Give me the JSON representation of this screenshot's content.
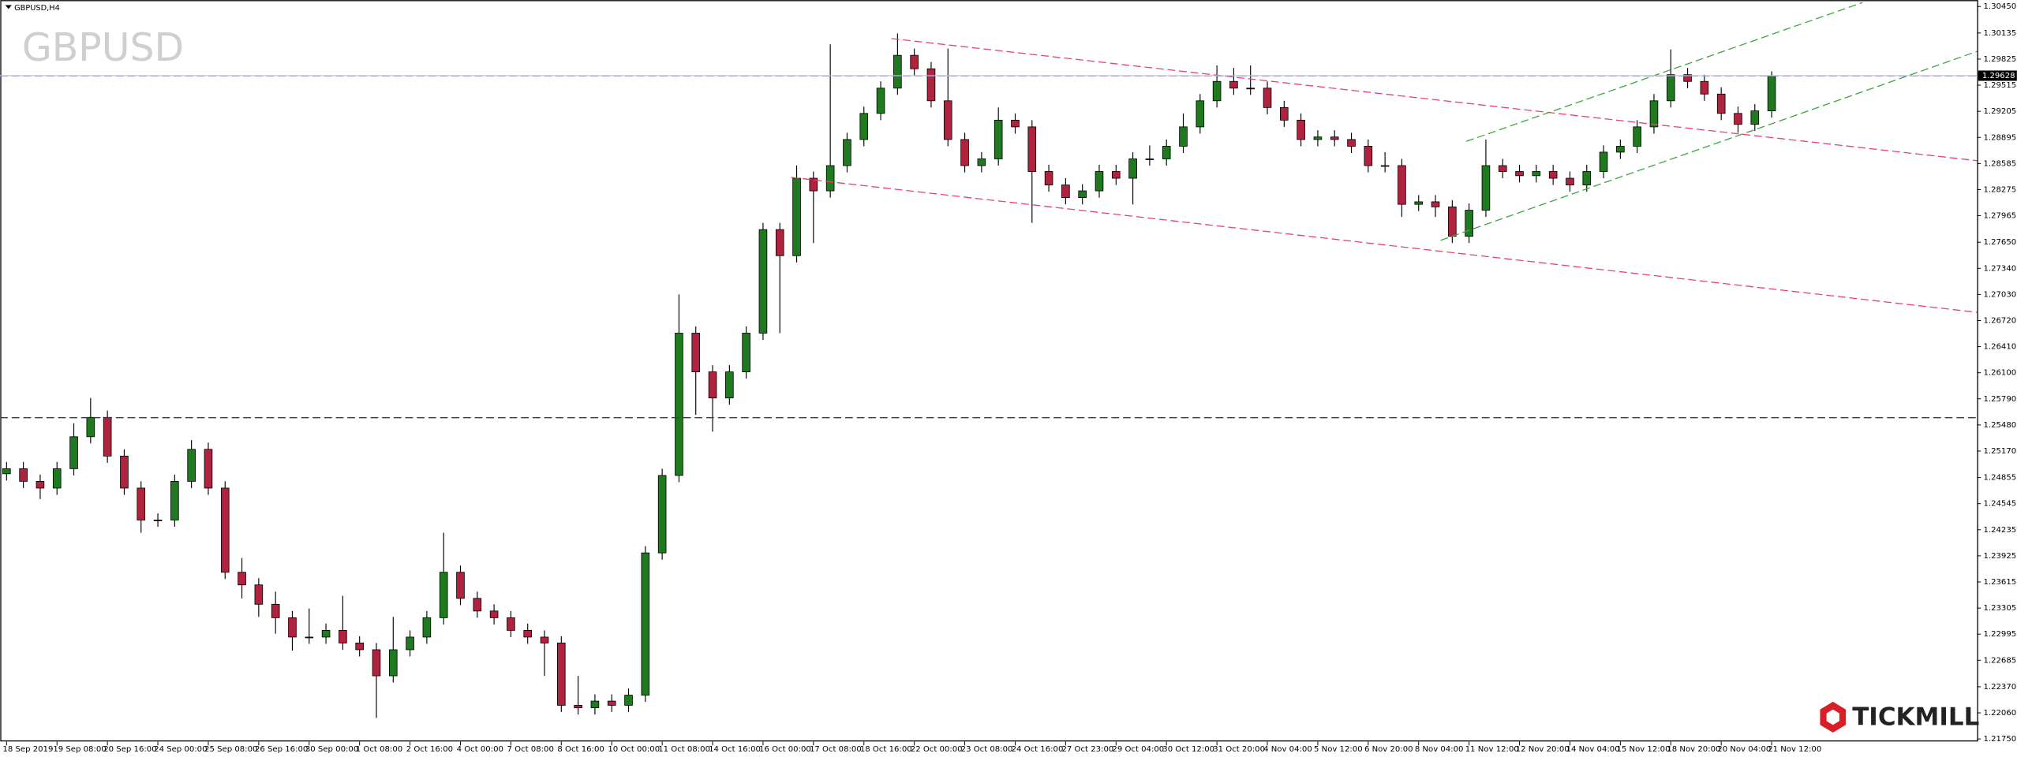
{
  "chart_data": {
    "type": "candlestick",
    "title": "GBPUSD,H4",
    "watermark": "GBPUSD",
    "brand": "TICKMILL",
    "up_color": "#1f7a1f",
    "down_color": "#b0233f",
    "current_price": 1.29628,
    "ylim": [
      1.21719,
      1.30527
    ],
    "yticks": [
      {
        "value": 1.3045,
        "label": "1.30450"
      },
      1.30135,
      1.29825,
      1.29515,
      1.29205,
      1.28895,
      1.28585,
      1.28275,
      1.27965,
      {
        "value": 1.2765,
        "label": "1.27650"
      },
      {
        "value": 1.2734,
        "label": "1.27340"
      },
      {
        "value": 1.2703,
        "label": "1.27030"
      },
      {
        "value": 1.2672,
        "label": "1.26720"
      },
      {
        "value": 1.2641,
        "label": "1.26410"
      },
      {
        "value": 1.261,
        "label": "1.26100"
      },
      {
        "value": 1.2579,
        "label": "1.25790"
      },
      {
        "value": 1.2548,
        "label": "1.25480"
      },
      {
        "value": 1.2517,
        "label": "1.25170"
      },
      1.24855,
      1.24545,
      1.24235,
      1.23925,
      1.23615,
      1.23305,
      1.22995,
      1.22685,
      {
        "value": 1.2237,
        "label": "1.22370"
      },
      {
        "value": 1.2206,
        "label": "1.22060"
      },
      {
        "value": 1.2175,
        "label": "1.21750"
      }
    ],
    "categories": [
      "18 Sep 2019",
      null,
      null,
      "19 Sep 08:00",
      null,
      null,
      "20 Sep 16:00",
      null,
      null,
      "24 Sep 00:00",
      null,
      null,
      "25 Sep 08:00",
      null,
      null,
      "26 Sep 16:00",
      null,
      null,
      "30 Sep 00:00",
      null,
      null,
      "1 Oct 08:00",
      null,
      null,
      "2 Oct 16:00",
      null,
      null,
      "4 Oct 00:00",
      null,
      null,
      "7 Oct 08:00",
      null,
      null,
      "8 Oct 16:00",
      null,
      null,
      "10 Oct 00:00",
      null,
      null,
      "11 Oct 08:00",
      null,
      null,
      "14 Oct 16:00",
      null,
      null,
      "16 Oct 00:00",
      null,
      null,
      "17 Oct 08:00",
      null,
      null,
      "18 Oct 16:00",
      null,
      null,
      "22 Oct 00:00",
      null,
      null,
      "23 Oct 08:00",
      null,
      null,
      "24 Oct 16:00",
      null,
      null,
      "27 Oct 23:00",
      null,
      null,
      "29 Oct 04:00",
      null,
      null,
      "30 Oct 12:00",
      null,
      null,
      "31 Oct 20:00",
      null,
      null,
      "4 Nov 04:00",
      null,
      null,
      "5 Nov 12:00",
      null,
      null,
      "6 Nov 20:00",
      null,
      null,
      "8 Nov 04:00",
      null,
      null,
      "11 Nov 12:00",
      null,
      null,
      "12 Nov 20:00",
      null,
      null,
      "14 Nov 04:00",
      null,
      null,
      "15 Nov 12:00",
      null,
      null,
      "18 Nov 20:00",
      null,
      null,
      "20 Nov 04:00",
      null,
      null,
      "21 Nov 12:00"
    ],
    "open": [
      1.249,
      1.2496,
      1.2481,
      1.2473,
      1.2496,
      1.2534,
      1.2557,
      1.2511,
      1.2473,
      1.2435,
      1.2435,
      1.2481,
      1.2519,
      1.2473,
      1.2373,
      1.2358,
      1.2335,
      1.2319,
      1.2296,
      1.2296,
      1.2304,
      1.2289,
      1.2281,
      1.225,
      1.2281,
      1.2296,
      1.2319,
      1.2373,
      1.2342,
      1.2327,
      1.2319,
      1.2304,
      1.2296,
      1.2289,
      1.2215,
      1.2212,
      1.222,
      1.2215,
      1.2227,
      1.2396,
      1.2488,
      1.2657,
      1.2611,
      1.258,
      1.2611,
      1.2657,
      1.278,
      1.2749,
      1.2841,
      1.2826,
      1.2856,
      1.2887,
      1.2918,
      1.2948,
      1.2987,
      1.2971,
      1.2933,
      1.2887,
      1.2856,
      1.2864,
      1.291,
      1.2902,
      1.2849,
      1.2833,
      1.2818,
      1.2826,
      1.2849,
      1.2841,
      1.2864,
      1.2864,
      1.2879,
      1.2902,
      1.2933,
      1.2956,
      1.2948,
      1.2948,
      1.2925,
      1.291,
      1.2887,
      1.289,
      1.2887,
      1.2879,
      1.2856,
      1.2856,
      1.281,
      1.2813,
      1.2807,
      1.2772,
      1.2803,
      1.2856,
      1.2849,
      1.2844,
      1.2849,
      1.2841,
      1.2833,
      1.2849,
      1.2872,
      1.2879,
      1.2902,
      1.2933,
      1.2964,
      1.2956,
      1.2941,
      1.2918,
      1.2905,
      1.2921
    ],
    "high": [
      1.2504,
      1.2504,
      1.2489,
      1.2504,
      1.255,
      1.258,
      1.2565,
      1.2519,
      1.2481,
      1.2443,
      1.2489,
      1.253,
      1.2527,
      1.2481,
      1.239,
      1.2366,
      1.235,
      1.2327,
      1.233,
      1.2312,
      1.2345,
      1.2297,
      1.2289,
      1.232,
      1.2304,
      1.2327,
      1.242,
      1.2381,
      1.235,
      1.2335,
      1.2327,
      1.2312,
      1.2304,
      1.2297,
      1.225,
      1.2228,
      1.2228,
      1.2235,
      1.2404,
      1.2496,
      1.2703,
      1.2665,
      1.2619,
      1.2619,
      1.2665,
      1.2788,
      1.2788,
      1.2856,
      1.2849,
      1.3,
      1.2895,
      1.2926,
      1.2956,
      1.3013,
      1.2995,
      1.2979,
      1.2995,
      1.2895,
      1.2872,
      1.2925,
      1.2918,
      1.291,
      1.2857,
      1.2841,
      1.2834,
      1.2857,
      1.2857,
      1.2872,
      1.288,
      1.2887,
      1.2918,
      1.2941,
      1.2975,
      1.2972,
      1.2975,
      1.2956,
      1.2933,
      1.2918,
      1.2898,
      1.2898,
      1.2895,
      1.2887,
      1.2872,
      1.2864,
      1.2821,
      1.2821,
      1.2815,
      1.2811,
      1.2887,
      1.2864,
      1.2857,
      1.2857,
      1.2857,
      1.2849,
      1.2857,
      1.288,
      1.2887,
      1.291,
      1.2941,
      1.2994,
      1.2972,
      1.2964,
      1.2949,
      1.2926,
      1.2929,
      1.2968
    ],
    "low": [
      1.2482,
      1.2473,
      1.246,
      1.2465,
      1.2488,
      1.2526,
      1.2503,
      1.2465,
      1.242,
      1.2427,
      1.2427,
      1.2473,
      1.2465,
      1.2365,
      1.2342,
      1.232,
      1.23,
      1.228,
      1.2288,
      1.2288,
      1.2281,
      1.2273,
      1.22,
      1.2242,
      1.2273,
      1.2288,
      1.2311,
      1.2334,
      1.2319,
      1.2311,
      1.2296,
      1.2288,
      1.225,
      1.2207,
      1.2204,
      1.2204,
      1.2207,
      1.2207,
      1.2219,
      1.2388,
      1.248,
      1.256,
      1.254,
      1.2572,
      1.2603,
      1.2649,
      1.2657,
      1.2741,
      1.2764,
      1.2818,
      1.2848,
      1.2879,
      1.291,
      1.294,
      1.2963,
      1.2925,
      1.2879,
      1.2848,
      1.2848,
      1.2856,
      1.2894,
      1.2788,
      1.2825,
      1.281,
      1.281,
      1.2818,
      1.2833,
      1.281,
      1.2856,
      1.2856,
      1.2871,
      1.2894,
      1.2925,
      1.294,
      1.294,
      1.2917,
      1.2902,
      1.2879,
      1.2879,
      1.2879,
      1.2871,
      1.2848,
      1.2848,
      1.2795,
      1.2802,
      1.2795,
      1.2764,
      1.2764,
      1.2795,
      1.2841,
      1.2836,
      1.2836,
      1.2833,
      1.2825,
      1.2825,
      1.2841,
      1.2864,
      1.2871,
      1.2894,
      1.2925,
      1.2948,
      1.2933,
      1.291,
      1.2895,
      1.2897,
      1.2913
    ],
    "close": [
      1.2496,
      1.2481,
      1.2473,
      1.2496,
      1.2534,
      1.2557,
      1.2511,
      1.2473,
      1.2435,
      1.2435,
      1.2481,
      1.2519,
      1.2473,
      1.2373,
      1.2358,
      1.2335,
      1.2319,
      1.2296,
      1.2296,
      1.2304,
      1.2289,
      1.2281,
      1.225,
      1.2281,
      1.2296,
      1.2319,
      1.2373,
      1.2342,
      1.2327,
      1.2319,
      1.2304,
      1.2296,
      1.2289,
      1.2215,
      1.2212,
      1.222,
      1.2215,
      1.2227,
      1.2396,
      1.2488,
      1.2657,
      1.2611,
      1.258,
      1.2611,
      1.2657,
      1.278,
      1.2749,
      1.2841,
      1.2826,
      1.2856,
      1.2887,
      1.2918,
      1.2948,
      1.2987,
      1.2971,
      1.2933,
      1.2887,
      1.2856,
      1.2864,
      1.291,
      1.2902,
      1.2849,
      1.2833,
      1.2818,
      1.2826,
      1.2849,
      1.2841,
      1.2864,
      1.2864,
      1.2879,
      1.2902,
      1.2933,
      1.2956,
      1.2948,
      1.2948,
      1.2925,
      1.291,
      1.2887,
      1.289,
      1.2887,
      1.2879,
      1.2856,
      1.2856,
      1.281,
      1.2813,
      1.2807,
      1.2772,
      1.2803,
      1.2856,
      1.2849,
      1.2844,
      1.2849,
      1.2841,
      1.2833,
      1.2849,
      1.2872,
      1.2879,
      1.2902,
      1.2933,
      1.2964,
      1.2956,
      1.2941,
      1.2918,
      1.2905,
      1.2921,
      1.29628
    ]
  }
}
